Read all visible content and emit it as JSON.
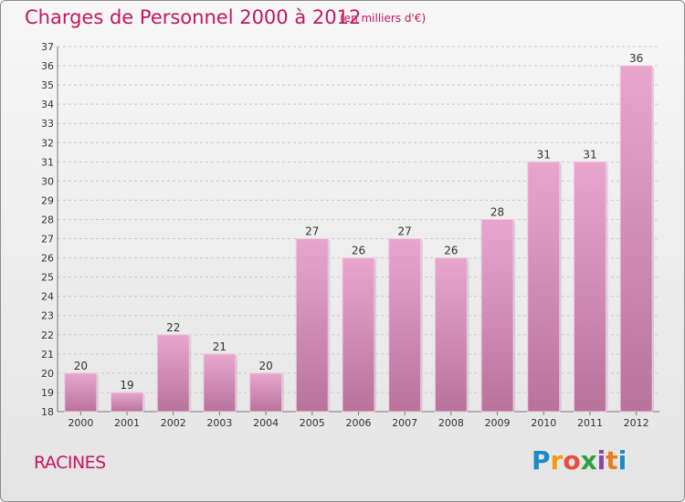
{
  "title": "Charges de Personnel 2000 à 2012",
  "unit": "(en milliers d'€)",
  "town": "RACINES",
  "logo": {
    "text": "Proxiti",
    "colors": [
      "#1e88c8",
      "#f39c12",
      "#e74c3c",
      "#2ea043",
      "#8e44ad",
      "#e67e22",
      "#1e88c8"
    ]
  },
  "colors": {
    "bar_top": "#e8a6cf",
    "bar_bottom": "#b8739b",
    "text_accent": "#c2185b"
  },
  "chart_data": {
    "type": "bar",
    "categories": [
      "2000",
      "2001",
      "2002",
      "2003",
      "2004",
      "2005",
      "2006",
      "2007",
      "2008",
      "2009",
      "2010",
      "2011",
      "2012"
    ],
    "values": [
      20,
      19,
      22,
      21,
      20,
      27,
      26,
      27,
      26,
      28,
      31,
      31,
      36
    ],
    "value_labels": [
      "20",
      "19",
      "22",
      "21",
      "20",
      "27",
      "26",
      "27",
      "26",
      "28",
      "31",
      "31",
      "36"
    ],
    "yticks": [
      "18",
      "19",
      "20",
      "21",
      "22",
      "23",
      "24",
      "25",
      "26",
      "27",
      "28",
      "29",
      "30",
      "31",
      "32",
      "33",
      "34",
      "35",
      "36",
      "37"
    ],
    "ylim": [
      18,
      37
    ],
    "grid": true
  }
}
